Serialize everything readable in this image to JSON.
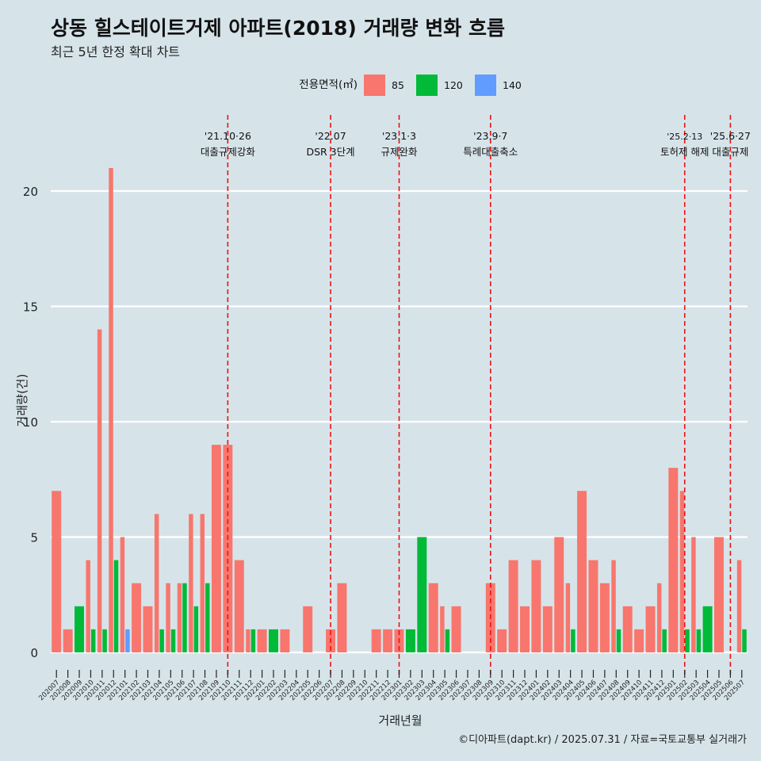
{
  "header": {
    "title": "상동 힐스테이트거제 아파트(2018) 거래량 변화 흐름",
    "subtitle": "최근 5년 한정 확대 차트"
  },
  "caption": "©디아파트(dapt.kr) / 2025.07.31 / 자료=국토교통부 실거래가",
  "colors": {
    "background": "#d6e4ea",
    "s85": "#f8766d",
    "s120": "#00ba38",
    "s140": "#619cff",
    "event_line": "#ee1111"
  },
  "chart_data": {
    "type": "bar",
    "xlabel": "거래년월",
    "ylabel": "거래량(건)",
    "ylim": [
      0,
      22
    ],
    "yticks": [
      0,
      5,
      10,
      15,
      20
    ],
    "legend": {
      "title": "전용면적(㎡)",
      "position": "top"
    },
    "categories": [
      "202007",
      "202008",
      "202009",
      "202010",
      "202011",
      "202012",
      "202101",
      "202102",
      "202103",
      "202104",
      "202105",
      "202106",
      "202107",
      "202108",
      "202109",
      "202110",
      "202111",
      "202112",
      "202201",
      "202202",
      "202203",
      "202204",
      "202205",
      "202206",
      "202207",
      "202208",
      "202209",
      "202210",
      "202211",
      "202212",
      "202301",
      "202302",
      "202303",
      "202304",
      "202305",
      "202306",
      "202307",
      "202308",
      "202309",
      "202310",
      "202311",
      "202312",
      "202401",
      "202402",
      "202403",
      "202404",
      "202405",
      "202406",
      "202407",
      "202408",
      "202409",
      "202410",
      "202411",
      "202412",
      "202501",
      "202502",
      "202503",
      "202504",
      "202505",
      "202506",
      "202507"
    ],
    "series": [
      {
        "name": "85",
        "values": [
          7,
          1,
          0,
          4,
          14,
          21,
          5,
          3,
          2,
          6,
          3,
          3,
          6,
          6,
          9,
          9,
          4,
          1,
          1,
          0,
          1,
          0,
          2,
          0,
          1,
          3,
          0,
          0,
          1,
          1,
          1,
          0,
          0,
          3,
          2,
          2,
          0,
          0,
          3,
          1,
          4,
          2,
          4,
          2,
          5,
          3,
          7,
          4,
          3,
          4,
          2,
          1,
          2,
          3,
          8,
          7,
          5,
          0,
          5,
          0,
          4
        ]
      },
      {
        "name": "120",
        "values": [
          0,
          0,
          2,
          1,
          1,
          4,
          0,
          0,
          0,
          1,
          1,
          3,
          2,
          3,
          0,
          0,
          0,
          1,
          0,
          1,
          0,
          0,
          0,
          0,
          0,
          0,
          0,
          0,
          0,
          0,
          0,
          1,
          5,
          0,
          1,
          0,
          0,
          0,
          0,
          0,
          0,
          0,
          0,
          0,
          0,
          1,
          0,
          0,
          0,
          1,
          0,
          0,
          0,
          1,
          0,
          1,
          1,
          2,
          0,
          0,
          1
        ]
      },
      {
        "name": "140",
        "values": [
          0,
          0,
          0,
          0,
          0,
          0,
          1,
          0,
          0,
          0,
          0,
          0,
          0,
          0,
          0,
          0,
          0,
          0,
          0,
          0,
          0,
          0,
          0,
          0,
          0,
          0,
          0,
          0,
          0,
          0,
          0,
          0,
          0,
          0,
          0,
          0,
          0,
          0,
          0,
          0,
          0,
          0,
          0,
          0,
          0,
          0,
          0,
          0,
          0,
          0,
          0,
          0,
          0,
          0,
          0,
          0,
          0,
          0,
          0,
          0,
          0
        ]
      }
    ],
    "events": [
      {
        "x": "202110",
        "date": "'21.10·26",
        "label": "대출규제강화"
      },
      {
        "x": "202207",
        "date": "'22.07",
        "label": "DSR 3단계"
      },
      {
        "x": "202301",
        "date": "'23.1·3",
        "label": "규제완화"
      },
      {
        "x": "202309",
        "date": "'23.9·7",
        "label": "특례대출축소"
      },
      {
        "x": "202502",
        "date": "'25.2·13",
        "label": "토허제 해제"
      },
      {
        "x": "202506",
        "date": "'25.6·27",
        "label": "대출규제"
      }
    ]
  }
}
